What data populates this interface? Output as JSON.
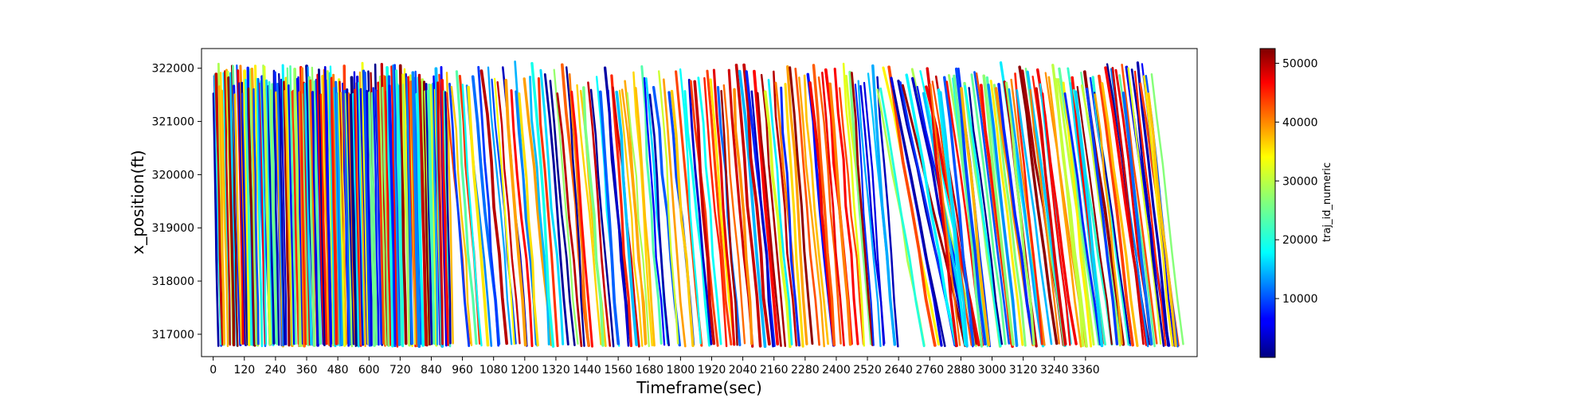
{
  "chart_data": {
    "type": "scatter",
    "title": "",
    "xlabel": "Timeframe(sec)",
    "ylabel": "x_position(ft)",
    "xlim": [
      -45,
      3790
    ],
    "ylim": [
      316580,
      322370
    ],
    "x_ticks": [
      0,
      120,
      240,
      360,
      480,
      600,
      720,
      840,
      960,
      1080,
      1200,
      1320,
      1440,
      1560,
      1680,
      1800,
      1920,
      2040,
      2160,
      2280,
      2400,
      2520,
      2640,
      2760,
      2880,
      3000,
      3120,
      3240,
      3360
    ],
    "x_tick_labels": [
      "0",
      "120",
      "240",
      "360",
      "480",
      "600",
      "720",
      "840",
      "960",
      "1080",
      "1200",
      "1320",
      "1440",
      "1560",
      "1680",
      "1800",
      "1920",
      "2040",
      "2160",
      "2280",
      "2400",
      "2520",
      "2640",
      "2760",
      "2880",
      "3000",
      "3120",
      "3240",
      "3360"
    ],
    "y_ticks": [
      317000,
      318000,
      319000,
      320000,
      321000,
      322000
    ],
    "y_tick_labels": [
      "317000",
      "318000",
      "319000",
      "320000",
      "321000",
      "322000"
    ],
    "colorbar": {
      "label": "traj_id_numeric",
      "colormap": "jet",
      "range": [
        0,
        52500
      ],
      "ticks": [
        10000,
        20000,
        30000,
        40000,
        50000
      ],
      "tick_labels": [
        "10000",
        "20000",
        "30000",
        "40000",
        "50000"
      ]
    },
    "data_extent": {
      "x": [
        0,
        3620
      ],
      "y": [
        316800,
        322100
      ]
    },
    "trajectories": {
      "color_by": "traj_id_numeric",
      "segments": [
        {
          "x_start": 0,
          "x_end": 900,
          "slope_ft_per_sec": -220,
          "spacing_sec": 5
        },
        {
          "x_start": 900,
          "x_end": 2560,
          "slope_ft_per_sec": -60,
          "spacing_sec": 14
        },
        {
          "x_start": 2560,
          "x_end": 2750,
          "slope_ft_per_sec": -25,
          "spacing_sec": 12
        },
        {
          "x_start": 2750,
          "x_end": 3620,
          "slope_ft_per_sec": -40,
          "spacing_sec": 10
        }
      ]
    },
    "grid": false,
    "legend": "colorbar-right"
  }
}
